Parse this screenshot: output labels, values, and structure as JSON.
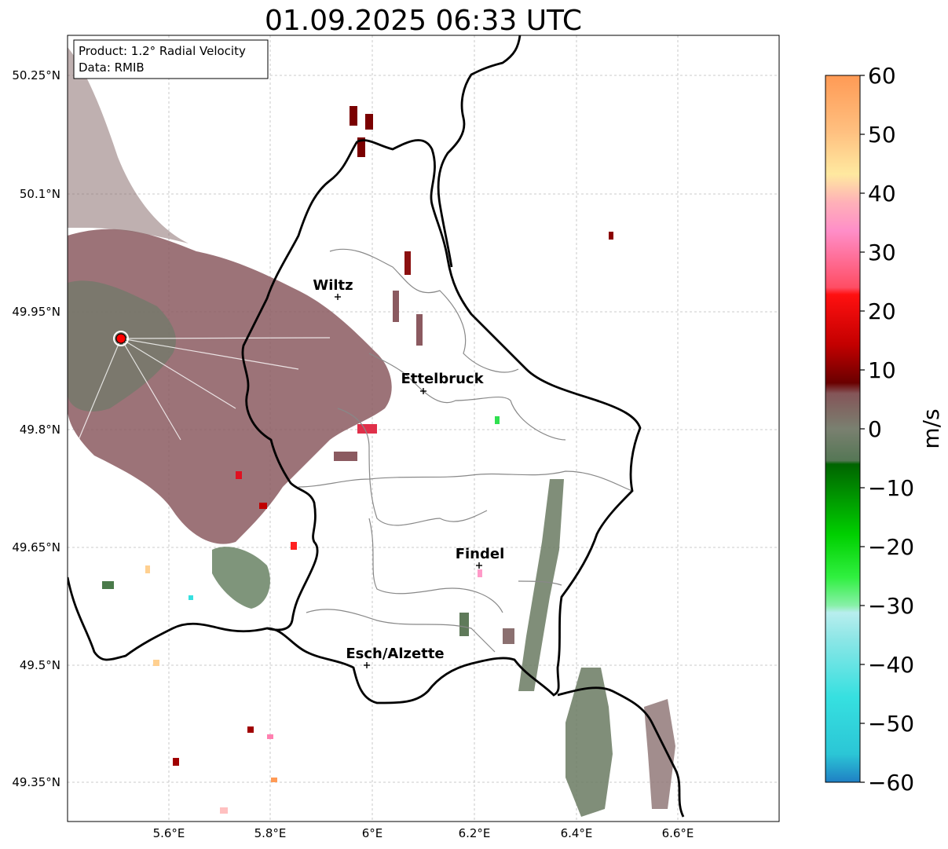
{
  "title": "01.09.2025 06:33 UTC",
  "info_box": {
    "product": "Product: 1.2° Radial Velocity",
    "data_source": "Data: RMIB"
  },
  "lat_ticks": [
    "50.25°N",
    "50.1°N",
    "49.95°N",
    "49.8°N",
    "49.65°N",
    "49.5°N",
    "49.35°N"
  ],
  "lon_ticks": [
    "5.6°E",
    "5.8°E",
    "6°E",
    "6.2°E",
    "6.4°E",
    "6.6°E"
  ],
  "cities": [
    {
      "name": "Wiltz"
    },
    {
      "name": "Ettelbruck"
    },
    {
      "name": "Findel"
    },
    {
      "name": "Esch/Alzette"
    }
  ],
  "radar_site_color": "#ff0000",
  "colorbar": {
    "label": "m/s",
    "ticks": [
      "60",
      "50",
      "40",
      "30",
      "20",
      "10",
      "0",
      "−10",
      "−20",
      "−30",
      "−40",
      "−50",
      "−60"
    ],
    "range": [
      -60,
      60
    ]
  },
  "colors": {
    "pos_velocity": "#8b4a55",
    "neg_velocity": "#5d7a55",
    "border": "#000000",
    "canton": "#888888"
  }
}
